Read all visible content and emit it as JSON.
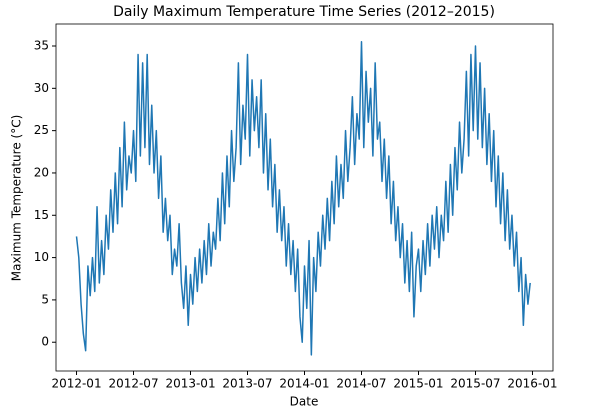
{
  "chart_data": {
    "type": "line",
    "title": "Daily Maximum Temperature Time Series (2012–2015)",
    "xlabel": "Date",
    "ylabel": "Maximum Temperature (°C)",
    "color": "#1f77b4",
    "grid": false,
    "xlim": [
      2011.82,
      2016.18
    ],
    "ylim": [
      -3.4,
      37.6
    ],
    "xticks": [
      {
        "value": 2012.0,
        "label": "2012-01"
      },
      {
        "value": 2012.5,
        "label": "2012-07"
      },
      {
        "value": 2013.0,
        "label": "2013-01"
      },
      {
        "value": 2013.5,
        "label": "2013-07"
      },
      {
        "value": 2014.0,
        "label": "2014-01"
      },
      {
        "value": 2014.5,
        "label": "2014-07"
      },
      {
        "value": 2015.0,
        "label": "2015-01"
      },
      {
        "value": 2015.5,
        "label": "2015-07"
      },
      {
        "value": 2016.0,
        "label": "2016-01"
      }
    ],
    "yticks": [
      0,
      5,
      10,
      15,
      20,
      25,
      30,
      35
    ],
    "x": [
      2012.0,
      2012.02,
      2012.04,
      2012.06,
      2012.08,
      2012.1,
      2012.12,
      2012.14,
      2012.16,
      2012.18,
      2012.2,
      2012.22,
      2012.24,
      2012.26,
      2012.28,
      2012.3,
      2012.32,
      2012.34,
      2012.36,
      2012.38,
      2012.4,
      2012.42,
      2012.44,
      2012.46,
      2012.48,
      2012.5,
      2012.52,
      2012.54,
      2012.56,
      2012.58,
      2012.6,
      2012.62,
      2012.64,
      2012.66,
      2012.68,
      2012.7,
      2012.72,
      2012.74,
      2012.76,
      2012.78,
      2012.8,
      2012.82,
      2012.84,
      2012.86,
      2012.88,
      2012.9,
      2012.92,
      2012.94,
      2012.96,
      2012.98,
      2013.0,
      2013.02,
      2013.04,
      2013.06,
      2013.08,
      2013.1,
      2013.12,
      2013.14,
      2013.16,
      2013.18,
      2013.2,
      2013.22,
      2013.24,
      2013.26,
      2013.28,
      2013.3,
      2013.32,
      2013.34,
      2013.36,
      2013.38,
      2013.4,
      2013.42,
      2013.44,
      2013.46,
      2013.48,
      2013.5,
      2013.52,
      2013.54,
      2013.56,
      2013.58,
      2013.6,
      2013.62,
      2013.64,
      2013.66,
      2013.68,
      2013.7,
      2013.72,
      2013.74,
      2013.76,
      2013.78,
      2013.8,
      2013.82,
      2013.84,
      2013.86,
      2013.88,
      2013.9,
      2013.92,
      2013.94,
      2013.96,
      2013.98,
      2014.0,
      2014.02,
      2014.04,
      2014.06,
      2014.08,
      2014.1,
      2014.12,
      2014.14,
      2014.16,
      2014.18,
      2014.2,
      2014.22,
      2014.24,
      2014.26,
      2014.28,
      2014.3,
      2014.32,
      2014.34,
      2014.36,
      2014.38,
      2014.4,
      2014.42,
      2014.44,
      2014.46,
      2014.48,
      2014.5,
      2014.52,
      2014.54,
      2014.56,
      2014.58,
      2014.6,
      2014.62,
      2014.64,
      2014.66,
      2014.68,
      2014.7,
      2014.72,
      2014.74,
      2014.76,
      2014.78,
      2014.8,
      2014.82,
      2014.84,
      2014.86,
      2014.88,
      2014.9,
      2014.92,
      2014.94,
      2014.96,
      2014.98,
      2015.0,
      2015.02,
      2015.04,
      2015.06,
      2015.08,
      2015.1,
      2015.12,
      2015.14,
      2015.16,
      2015.18,
      2015.2,
      2015.22,
      2015.24,
      2015.26,
      2015.28,
      2015.3,
      2015.32,
      2015.34,
      2015.36,
      2015.38,
      2015.4,
      2015.42,
      2015.44,
      2015.46,
      2015.48,
      2015.5,
      2015.52,
      2015.54,
      2015.56,
      2015.58,
      2015.6,
      2015.62,
      2015.64,
      2015.66,
      2015.68,
      2015.7,
      2015.72,
      2015.74,
      2015.76,
      2015.78,
      2015.8,
      2015.82,
      2015.84,
      2015.86,
      2015.88,
      2015.9,
      2015.92,
      2015.94,
      2015.96,
      2015.98
    ],
    "values": [
      12.5,
      10,
      4.5,
      1,
      -1,
      9,
      5.5,
      10,
      6,
      16,
      7,
      12,
      8,
      15,
      11,
      18,
      13,
      20,
      14,
      23,
      16,
      26,
      18,
      22,
      20,
      25,
      19,
      34,
      22,
      33,
      23,
      34,
      21,
      28,
      20,
      25,
      17,
      22,
      13,
      17,
      12,
      15,
      8,
      11,
      9,
      14,
      7,
      4,
      9,
      2,
      8,
      4.5,
      10,
      6,
      11,
      7,
      12,
      8,
      14,
      9,
      13,
      11,
      17,
      12,
      20,
      14,
      22,
      16,
      25,
      19,
      23,
      33,
      21,
      28,
      24,
      34,
      22,
      31,
      25,
      29,
      23,
      31,
      20,
      27,
      18,
      24,
      16,
      21,
      13,
      18,
      12,
      16,
      9,
      14,
      8,
      12,
      6,
      11,
      3,
      0,
      9,
      4,
      12,
      -1.5,
      10,
      6,
      13,
      9,
      15,
      11,
      17,
      12,
      19,
      14,
      22,
      16,
      21,
      17,
      25,
      19,
      23,
      29,
      21,
      27,
      24,
      35.5,
      23,
      32,
      26,
      30,
      22,
      33,
      24,
      26,
      19,
      24,
      17,
      22,
      14,
      19,
      12,
      16,
      10,
      14,
      7,
      12,
      6,
      13,
      3,
      9,
      11,
      6,
      12,
      8,
      14,
      9,
      15,
      11,
      16,
      10,
      15,
      12,
      19,
      13,
      21,
      15,
      23,
      18,
      26,
      20,
      24,
      32,
      22,
      34,
      25,
      35,
      24,
      33,
      23,
      30,
      21,
      27,
      19,
      25,
      16,
      22,
      14,
      20,
      12,
      18,
      11,
      15,
      9,
      13,
      6,
      10,
      2,
      8,
      4.5,
      7
    ]
  }
}
